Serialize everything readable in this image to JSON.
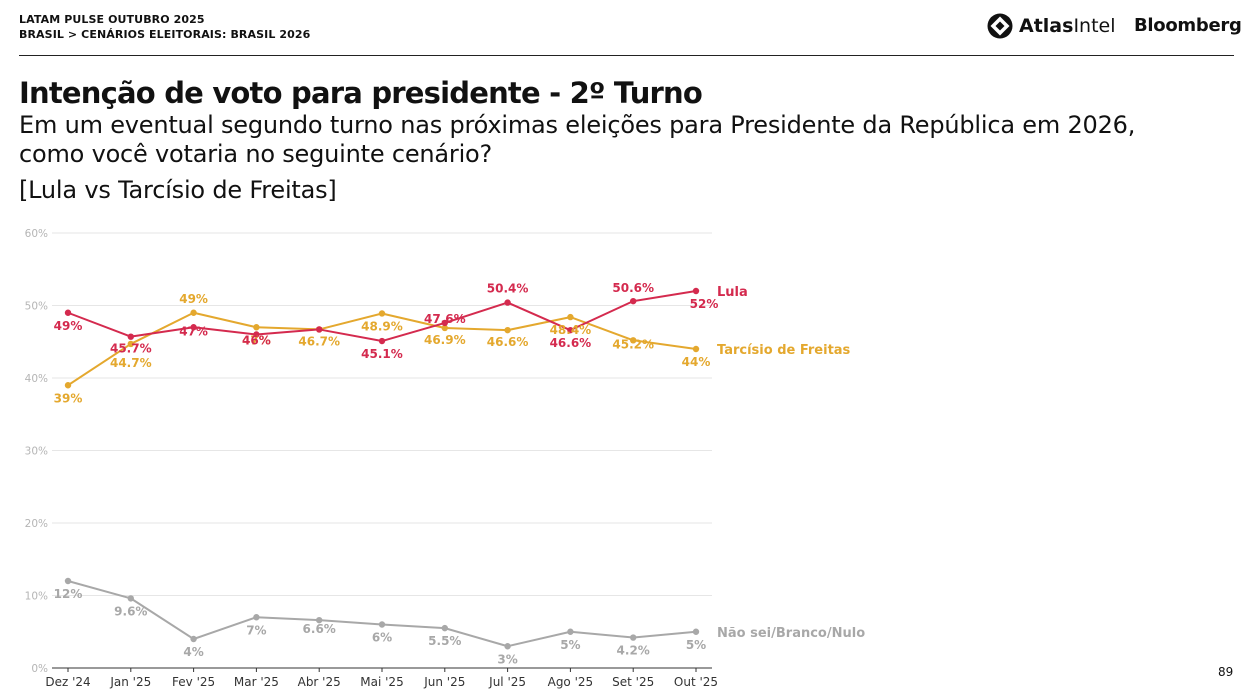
{
  "header": {
    "line1": "LATAM PULSE OUTUBRO 2025",
    "line2": "BRASIL > CENÁRIOS ELEITORAIS: BRASIL 2026",
    "brand_atlas_bold": "Atlas",
    "brand_atlas_light": "Intel",
    "brand_bloomberg": "Bloomberg"
  },
  "page": {
    "title": "Intenção de voto para presidente - 2º Turno",
    "subtitle": "Em um eventual segundo turno nas próximas eleições para Presidente da República em 2026, como você votaria no seguinte cenário?",
    "scenario": "[Lula vs Tarcísio de Freitas]",
    "page_number": "89"
  },
  "chart_data": {
    "type": "line",
    "x": [
      "Dez '24",
      "Jan '25",
      "Fev '25",
      "Mar '25",
      "Abr '25",
      "Mai '25",
      "Jun '25",
      "Jul '25",
      "Ago '25",
      "Set '25",
      "Out '25"
    ],
    "ylim": [
      0,
      60
    ],
    "yticks": [
      0,
      10,
      20,
      30,
      40,
      50,
      60
    ],
    "ytick_labels": [
      "0%",
      "10%",
      "20%",
      "30%",
      "40%",
      "50%",
      "60%"
    ],
    "grid": true,
    "series": [
      {
        "name": "Lula",
        "color": "#d42a4e",
        "values": [
          49,
          45.7,
          47,
          46,
          46.7,
          45.1,
          47.6,
          50.4,
          46.6,
          50.6,
          52
        ],
        "labels": [
          "49%",
          "45.7%",
          "47%",
          "46%",
          "",
          "45.1%",
          "47.6%",
          "50.4%",
          "46.6%",
          "50.6%",
          "52%"
        ]
      },
      {
        "name": "Tarcísio de Freitas",
        "color": "#e4a82e",
        "values": [
          39,
          44.7,
          49,
          47,
          46.7,
          48.9,
          46.9,
          46.6,
          48.4,
          45.2,
          44
        ],
        "labels": [
          "39%",
          "44.7%",
          "49%",
          "47%",
          "46.7%",
          "48.9%",
          "46.9%",
          "46.6%",
          "48.4%",
          "45.2%",
          "44%"
        ]
      },
      {
        "name": "Não sei/Branco/Nulo",
        "color": "#a8a8a8",
        "values": [
          12,
          9.6,
          4,
          7,
          6.6,
          6,
          5.5,
          3,
          5,
          4.2,
          5
        ],
        "labels": [
          "12%",
          "9.6%",
          "4%",
          "7%",
          "6.6%",
          "6%",
          "5.5%",
          "3%",
          "5%",
          "4.2%",
          "5%"
        ]
      }
    ]
  }
}
